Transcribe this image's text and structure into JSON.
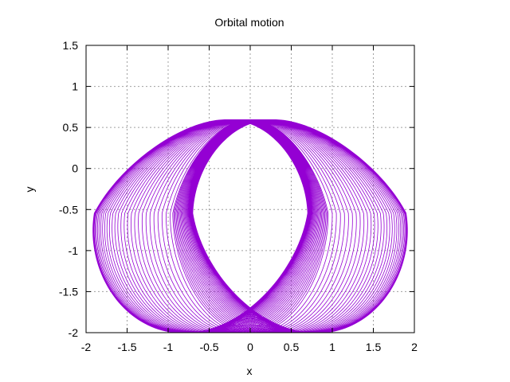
{
  "chart_data": {
    "type": "line",
    "title": "Orbital motion",
    "xlabel": "x",
    "ylabel": "y",
    "xlim": [
      -2,
      2
    ],
    "ylim": [
      -2,
      1.5
    ],
    "xticks": [
      "-2",
      "-1.5",
      "-1",
      "-0.5",
      "0",
      "0.5",
      "1",
      "1.5",
      "2"
    ],
    "xtick_values": [
      -2,
      -1.5,
      -1,
      -0.5,
      0,
      0.5,
      1,
      1.5,
      2
    ],
    "yticks": [
      "-2",
      "-1.5",
      "-1",
      "-0.5",
      "0",
      "0.5",
      "1",
      "1.5"
    ],
    "ytick_values": [
      -2,
      -1.5,
      -1,
      -0.5,
      0,
      0.5,
      1,
      1.5
    ],
    "grid": true,
    "line_color": "#9400d3",
    "series": [
      {
        "curve": "precessing-orbit",
        "orbit_center": [
          0,
          -0.625
        ],
        "orbit_semi_axes": [
          0.95,
          0.55
        ],
        "center_shift_extremes": [
          0.3,
          0.78
        ],
        "loops": 60
      }
    ]
  }
}
